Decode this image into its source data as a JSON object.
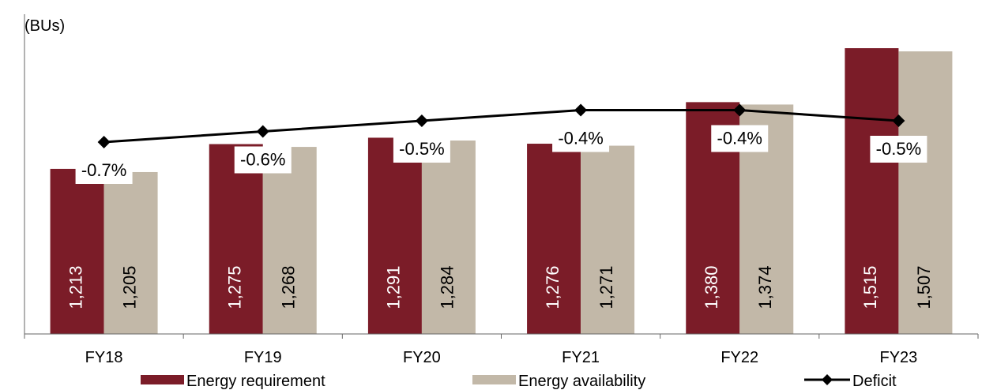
{
  "chart_data": {
    "type": "bar",
    "unit_label": "(BUs)",
    "categories": [
      "FY18",
      "FY19",
      "FY20",
      "FY21",
      "FY22",
      "FY23"
    ],
    "series": [
      {
        "name": "Energy requirement",
        "type": "bar",
        "color": "#7b1c28",
        "label_color": "#ffffff",
        "values": [
          1213,
          1275,
          1291,
          1276,
          1380,
          1515
        ],
        "labels": [
          "1,213",
          "1,275",
          "1,291",
          "1,276",
          "1,380",
          "1,515"
        ]
      },
      {
        "name": "Energy availability",
        "type": "bar",
        "color": "#c2b8a8",
        "label_color": "#000000",
        "values": [
          1205,
          1268,
          1284,
          1271,
          1374,
          1507
        ],
        "labels": [
          "1,205",
          "1,268",
          "1,284",
          "1,271",
          "1,374",
          "1,507"
        ]
      },
      {
        "name": "Deficit",
        "type": "line",
        "color": "#000000",
        "values": [
          -0.7,
          -0.6,
          -0.5,
          -0.4,
          -0.4,
          -0.5
        ],
        "labels": [
          "-0.7%",
          "-0.6%",
          "-0.5%",
          "-0.4%",
          "-0.4%",
          "-0.5%"
        ]
      }
    ],
    "bar_ylim": [
      800,
      1600
    ],
    "deficit_ylim": [
      -2.5,
      0.5
    ],
    "grid": false,
    "legend_position": "bottom"
  }
}
